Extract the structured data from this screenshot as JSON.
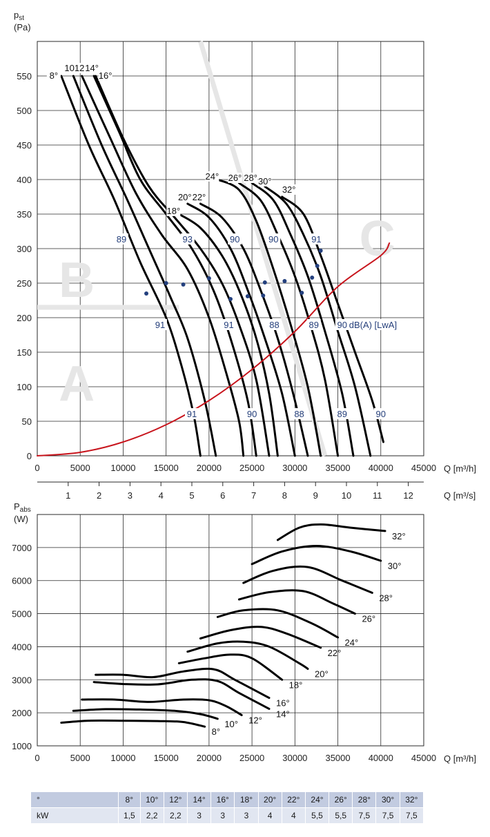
{
  "chart_data": [
    {
      "type": "line",
      "ylabel_main": "p",
      "ylabel_sub": "st",
      "yunit": "(Pa)",
      "xlabel": "Q [m³/h]",
      "xlim": [
        0,
        45000
      ],
      "ylim": [
        0,
        600
      ],
      "xticks": [
        0,
        5000,
        10000,
        15000,
        20000,
        25000,
        30000,
        35000,
        40000,
        45000
      ],
      "yticks": [
        0,
        50,
        100,
        150,
        200,
        250,
        300,
        350,
        400,
        450,
        500,
        550
      ],
      "grid": true,
      "secondary_x": {
        "label": "Q [m³/s]",
        "ticks": [
          1,
          2,
          3,
          4,
          5,
          6,
          7,
          8,
          9,
          10,
          11,
          12
        ]
      },
      "zones": [
        "A",
        "B",
        "C"
      ],
      "series": [
        {
          "name": "8°",
          "points": [
            [
              2800,
              550
            ],
            [
              6000,
              450
            ],
            [
              9000,
              370
            ],
            [
              12000,
              280
            ],
            [
              15000,
              200
            ],
            [
              16800,
              130
            ],
            [
              18200,
              60
            ],
            [
              19000,
              0
            ]
          ]
        },
        {
          "name": "10°",
          "points": [
            [
              4200,
              550
            ],
            [
              7500,
              450
            ],
            [
              10500,
              370
            ],
            [
              13000,
              300
            ],
            [
              15500,
              230
            ],
            [
              17500,
              170
            ],
            [
              19500,
              80
            ],
            [
              20800,
              0
            ]
          ]
        },
        {
          "name": "12°",
          "points": [
            [
              5200,
              550
            ],
            [
              8500,
              460
            ],
            [
              11500,
              380
            ],
            [
              14500,
              320
            ],
            [
              17500,
              270
            ],
            [
              20000,
              200
            ],
            [
              22000,
              120
            ],
            [
              23500,
              50
            ],
            [
              24000,
              0
            ]
          ]
        },
        {
          "name": "14°",
          "points": [
            [
              6600,
              550
            ],
            [
              9500,
              470
            ],
            [
              12000,
              400
            ],
            [
              15000,
              350
            ],
            [
              18000,
              300
            ],
            [
              20500,
              240
            ],
            [
              22500,
              170
            ],
            [
              24500,
              80
            ],
            [
              25500,
              0
            ]
          ]
        },
        {
          "name": "16°",
          "points": [
            [
              6800,
              550
            ],
            [
              10000,
              460
            ],
            [
              13000,
              390
            ],
            [
              16000,
              345
            ],
            [
              19000,
              300
            ],
            [
              21500,
              250
            ],
            [
              23500,
              190
            ],
            [
              25500,
              110
            ],
            [
              27000,
              0
            ]
          ]
        },
        {
          "name": "18°",
          "points": [
            [
              16500,
              350
            ],
            [
              19000,
              330
            ],
            [
              21500,
              290
            ],
            [
              23500,
              240
            ],
            [
              25500,
              170
            ],
            [
              27000,
              90
            ],
            [
              28000,
              0
            ]
          ]
        },
        {
          "name": "20°",
          "points": [
            [
              17500,
              365
            ],
            [
              20000,
              345
            ],
            [
              22500,
              300
            ],
            [
              24500,
              240
            ],
            [
              26500,
              170
            ],
            [
              28500,
              90
            ],
            [
              30000,
              0
            ]
          ]
        },
        {
          "name": "22°",
          "points": [
            [
              19000,
              365
            ],
            [
              21500,
              345
            ],
            [
              24000,
              300
            ],
            [
              26000,
              240
            ],
            [
              28000,
              170
            ],
            [
              29800,
              90
            ],
            [
              31500,
              0
            ]
          ]
        },
        {
          "name": "24°",
          "points": [
            [
              21000,
              400
            ],
            [
              23500,
              385
            ],
            [
              25500,
              340
            ],
            [
              27500,
              270
            ],
            [
              29500,
              190
            ],
            [
              31500,
              100
            ],
            [
              33000,
              0
            ]
          ]
        },
        {
          "name": "26°",
          "points": [
            [
              23500,
              395
            ],
            [
              26000,
              370
            ],
            [
              28000,
              320
            ],
            [
              30000,
              260
            ],
            [
              31800,
              190
            ],
            [
              33500,
              110
            ],
            [
              35000,
              0
            ]
          ]
        },
        {
          "name": "28°",
          "points": [
            [
              25000,
              395
            ],
            [
              27500,
              370
            ],
            [
              29500,
              320
            ],
            [
              31500,
              260
            ],
            [
              33500,
              180
            ],
            [
              35500,
              90
            ],
            [
              36800,
              0
            ]
          ]
        },
        {
          "name": "30°",
          "points": [
            [
              26500,
              390
            ],
            [
              29000,
              365
            ],
            [
              31000,
              320
            ],
            [
              33000,
              260
            ],
            [
              35000,
              180
            ],
            [
              37000,
              100
            ],
            [
              38800,
              0
            ]
          ]
        },
        {
          "name": "32°",
          "points": [
            [
              28500,
              375
            ],
            [
              31000,
              350
            ],
            [
              33000,
              290
            ],
            [
              35000,
              220
            ],
            [
              37000,
              150
            ],
            [
              39000,
              80
            ],
            [
              40300,
              20
            ]
          ]
        },
        {
          "name": "system",
          "color": "#c8151d",
          "points": [
            [
              0,
              0
            ],
            [
              5000,
              5
            ],
            [
              10000,
              20
            ],
            [
              15000,
              45
            ],
            [
              20000,
              80
            ],
            [
              25000,
              125
            ],
            [
              30000,
              180
            ],
            [
              35000,
              245
            ],
            [
              40000,
              290
            ],
            [
              41000,
              308
            ]
          ]
        }
      ],
      "markers": [
        [
          12700,
          235
        ],
        [
          15000,
          250
        ],
        [
          17000,
          248
        ],
        [
          20000,
          257
        ],
        [
          22500,
          227
        ],
        [
          24500,
          231
        ],
        [
          26300,
          232
        ],
        [
          26500,
          251
        ],
        [
          28800,
          253
        ],
        [
          30800,
          236
        ],
        [
          32000,
          258
        ],
        [
          32600,
          275
        ],
        [
          33000,
          297
        ]
      ],
      "annotations": [
        {
          "text": "89",
          "x": 9800,
          "y": 310
        },
        {
          "text": "93",
          "x": 17500,
          "y": 310
        },
        {
          "text": "90",
          "x": 23000,
          "y": 310
        },
        {
          "text": "90",
          "x": 27500,
          "y": 310
        },
        {
          "text": "91",
          "x": 32500,
          "y": 310
        },
        {
          "text": "91",
          "x": 14300,
          "y": 186
        },
        {
          "text": "91",
          "x": 22300,
          "y": 186
        },
        {
          "text": "88",
          "x": 27600,
          "y": 186
        },
        {
          "text": "89",
          "x": 32200,
          "y": 186
        },
        {
          "text": "90",
          "x": 35500,
          "y": 186
        },
        {
          "text": "dB(A) [LwA]",
          "x": 36300,
          "y": 186
        },
        {
          "text": "91",
          "x": 18000,
          "y": 57
        },
        {
          "text": "90",
          "x": 25000,
          "y": 57
        },
        {
          "text": "88",
          "x": 30500,
          "y": 57
        },
        {
          "text": "89",
          "x": 35500,
          "y": 57
        },
        {
          "text": "90",
          "x": 40000,
          "y": 57
        }
      ]
    },
    {
      "type": "line",
      "ylabel_main": "P",
      "ylabel_sub": "abs",
      "yunit": "(W)",
      "xlabel": "Q [m³/h]",
      "xlim": [
        0,
        45000
      ],
      "ylim": [
        1000,
        8000
      ],
      "xticks": [
        0,
        5000,
        10000,
        15000,
        20000,
        25000,
        30000,
        35000,
        40000,
        45000
      ],
      "yticks": [
        1000,
        2000,
        3000,
        4000,
        5000,
        6000,
        7000
      ],
      "grid": true,
      "series": [
        {
          "name": "8°",
          "points": [
            [
              2800,
              1700
            ],
            [
              6000,
              1760
            ],
            [
              10000,
              1760
            ],
            [
              14000,
              1750
            ],
            [
              17000,
              1720
            ],
            [
              19500,
              1580
            ]
          ]
        },
        {
          "name": "10°",
          "points": [
            [
              4200,
              2060
            ],
            [
              8000,
              2110
            ],
            [
              12000,
              2100
            ],
            [
              16000,
              2060
            ],
            [
              19000,
              1960
            ],
            [
              21000,
              1820
            ]
          ]
        },
        {
          "name": "12°",
          "points": [
            [
              5200,
              2400
            ],
            [
              9000,
              2400
            ],
            [
              13000,
              2330
            ],
            [
              17000,
              2400
            ],
            [
              20000,
              2380
            ],
            [
              22000,
              2200
            ],
            [
              23800,
              1930
            ]
          ]
        },
        {
          "name": "14°",
          "points": [
            [
              6600,
              2930
            ],
            [
              10000,
              2870
            ],
            [
              14000,
              2860
            ],
            [
              18000,
              3000
            ],
            [
              21000,
              2960
            ],
            [
              23500,
              2600
            ],
            [
              27000,
              2120
            ]
          ]
        },
        {
          "name": "16°",
          "points": [
            [
              6800,
              3150
            ],
            [
              10000,
              3150
            ],
            [
              13500,
              3080
            ],
            [
              17000,
              3250
            ],
            [
              20500,
              3320
            ],
            [
              23000,
              3000
            ],
            [
              27000,
              2450
            ]
          ]
        },
        {
          "name": "18°",
          "points": [
            [
              16500,
              3500
            ],
            [
              19500,
              3650
            ],
            [
              22500,
              3760
            ],
            [
              25000,
              3650
            ],
            [
              28500,
              3000
            ]
          ]
        },
        {
          "name": "20°",
          "points": [
            [
              17500,
              3850
            ],
            [
              21000,
              4100
            ],
            [
              24000,
              4150
            ],
            [
              27000,
              4000
            ],
            [
              30500,
              3500
            ],
            [
              31500,
              3330
            ]
          ]
        },
        {
          "name": "22°",
          "points": [
            [
              19000,
              4250
            ],
            [
              22500,
              4500
            ],
            [
              26000,
              4600
            ],
            [
              29000,
              4400
            ],
            [
              33000,
              3970
            ]
          ]
        },
        {
          "name": "24°",
          "points": [
            [
              21000,
              4900
            ],
            [
              24000,
              5100
            ],
            [
              28000,
              5100
            ],
            [
              32000,
              4700
            ],
            [
              35000,
              4280
            ]
          ]
        },
        {
          "name": "26°",
          "points": [
            [
              23500,
              5430
            ],
            [
              27000,
              5650
            ],
            [
              31000,
              5680
            ],
            [
              34500,
              5300
            ],
            [
              37000,
              5000
            ]
          ]
        },
        {
          "name": "28°",
          "points": [
            [
              24000,
              5930
            ],
            [
              27500,
              6300
            ],
            [
              31500,
              6410
            ],
            [
              35500,
              6000
            ],
            [
              39000,
              5630
            ]
          ]
        },
        {
          "name": "30°",
          "points": [
            [
              25000,
              6500
            ],
            [
              28500,
              6880
            ],
            [
              32500,
              7050
            ],
            [
              36500,
              6880
            ],
            [
              40000,
              6600
            ]
          ]
        },
        {
          "name": "32°",
          "points": [
            [
              28000,
              7230
            ],
            [
              30500,
              7600
            ],
            [
              33000,
              7700
            ],
            [
              36500,
              7600
            ],
            [
              40500,
              7500
            ]
          ]
        }
      ]
    }
  ],
  "table": {
    "header_label": "°",
    "row_label": "kW",
    "angles": [
      "8°",
      "10°",
      "12°",
      "14°",
      "16°",
      "18°",
      "20°",
      "22°",
      "24°",
      "26°",
      "28°",
      "30°",
      "32°"
    ],
    "kw": [
      "1,5",
      "2,2",
      "2,2",
      "3",
      "3",
      "3",
      "4",
      "4",
      "5,5",
      "5,5",
      "7,5",
      "7,5",
      "7,5"
    ]
  }
}
